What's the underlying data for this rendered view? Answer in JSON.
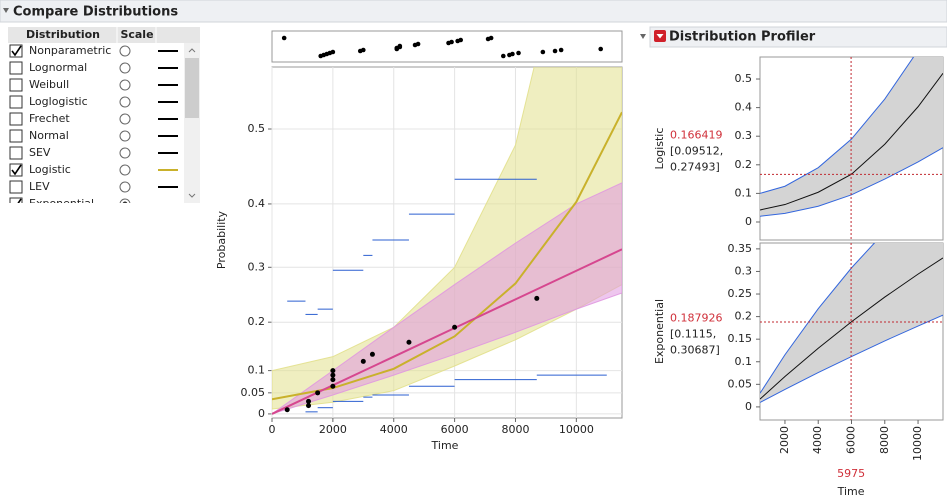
{
  "window": {
    "title": "Compare Distributions"
  },
  "table": {
    "columns": [
      "Distribution",
      "Scale"
    ],
    "rows": [
      {
        "name": "Nonparametric",
        "checked": true,
        "scale": false,
        "color": "#000000"
      },
      {
        "name": "Lognormal",
        "checked": false,
        "scale": false,
        "color": "#000000"
      },
      {
        "name": "Weibull",
        "checked": false,
        "scale": false,
        "color": "#000000"
      },
      {
        "name": "Loglogistic",
        "checked": false,
        "scale": false,
        "color": "#000000"
      },
      {
        "name": "Frechet",
        "checked": false,
        "scale": false,
        "color": "#000000"
      },
      {
        "name": "Normal",
        "checked": false,
        "scale": false,
        "color": "#000000"
      },
      {
        "name": "SEV",
        "checked": false,
        "scale": false,
        "color": "#000000"
      },
      {
        "name": "Logistic",
        "checked": true,
        "scale": false,
        "color": "#c9b12b"
      },
      {
        "name": "LEV",
        "checked": false,
        "scale": false,
        "color": "#000000"
      },
      {
        "name": "Exponential",
        "checked": true,
        "scale": true,
        "color": "#d6478f"
      }
    ]
  },
  "profiler": {
    "title": "Distribution Profiler"
  },
  "chart_data": [
    {
      "type": "line",
      "xlabel": "Time",
      "ylabel": "Probability",
      "xlim": [
        0,
        11500
      ],
      "ylim": [
        -0.01,
        0.57
      ],
      "yscale": "exponential",
      "xticks": [
        0,
        2000,
        4000,
        6000,
        8000,
        10000
      ],
      "yticks": [
        0,
        0.05,
        0.1,
        0.2,
        0.3,
        0.4,
        0.5
      ],
      "grid": true,
      "rug": {
        "x": [
          400,
          1600,
          1700,
          1800,
          1900,
          2000,
          2900,
          3000,
          4100,
          4100,
          4200,
          4200,
          4700,
          4800,
          5800,
          5900,
          6100,
          6200,
          7100,
          7200,
          7600,
          7800,
          7900,
          8100,
          8900,
          9300,
          9500,
          10800
        ],
        "color": "#000000"
      },
      "points": {
        "color": "#000000",
        "x": [
          500,
          1200,
          1200,
          1500,
          2000,
          2000,
          2000,
          2000,
          3000,
          3300,
          4500,
          6000,
          8700
        ],
        "values": [
          0.01,
          0.02,
          0.03,
          0.05,
          0.065,
          0.08,
          0.09,
          0.1,
          0.12,
          0.135,
          0.16,
          0.19,
          0.245
        ]
      },
      "steps": {
        "color": "#2b5fd0",
        "x_start": [
          500,
          1100,
          1500,
          2000,
          3000,
          3300,
          4500,
          6000,
          1100,
          1500,
          2000,
          3000,
          3300,
          4500,
          6000,
          8700
        ],
        "x_end": [
          1100,
          1500,
          2000,
          3000,
          3300,
          4500,
          6000,
          8700,
          1500,
          2000,
          3000,
          3300,
          4500,
          6000,
          8700,
          11000
        ],
        "values": [
          0.24,
          0.215,
          0.225,
          0.295,
          0.32,
          0.345,
          0.385,
          0.435,
          0.005,
          0.015,
          0.03,
          0.04,
          0.045,
          0.065,
          0.08,
          0.09
        ]
      },
      "series": [
        {
          "color": "#c9b12b",
          "band_color": "#e2e08c",
          "x": [
            0,
            2000,
            4000,
            6000,
            8000,
            10000,
            11500
          ],
          "values": [
            0.035,
            0.061,
            0.104,
            0.172,
            0.272,
            0.403,
            0.52
          ],
          "lower": [
            0.012,
            0.028,
            0.055,
            0.11,
            0.165,
            0.225,
            0.27
          ],
          "upper": [
            0.1,
            0.13,
            0.19,
            0.3,
            0.48,
            0.72,
            0.85
          ]
        },
        {
          "color": "#d6478f",
          "band_color": "#e098e0",
          "x": [
            0,
            2000,
            4000,
            6000,
            8000,
            10000,
            11500
          ],
          "values": [
            0,
            0.0673,
            0.13,
            0.1886,
            0.2432,
            0.2941,
            0.33
          ],
          "lower": [
            0,
            0.045,
            0.09,
            0.135,
            0.18,
            0.225,
            0.255
          ],
          "upper": [
            0,
            0.1,
            0.19,
            0.27,
            0.34,
            0.4,
            0.43
          ]
        }
      ]
    },
    {
      "type": "profiler",
      "ylabel": "Logistic",
      "xlim": [
        500,
        11500
      ],
      "ylim": [
        -0.063,
        0.577
      ],
      "yticks": [
        0,
        0.1,
        0.2,
        0.3,
        0.4,
        0.5
      ],
      "crosshair_x": 5975,
      "crosshair_y": 0.166419,
      "ci_labels": [
        "[0.09512,",
        "0.27493]"
      ],
      "x": [
        500,
        2000,
        4000,
        6000,
        8000,
        10000,
        11500
      ],
      "values": [
        0.042,
        0.061,
        0.104,
        0.167,
        0.272,
        0.403,
        0.52
      ],
      "lower": [
        0.02,
        0.03,
        0.055,
        0.095,
        0.15,
        0.21,
        0.26
      ],
      "upper": [
        0.1,
        0.125,
        0.19,
        0.29,
        0.43,
        0.6,
        0.7
      ]
    },
    {
      "type": "profiler",
      "ylabel": "Exponential",
      "xlabel": "Time",
      "xlim": [
        500,
        11500
      ],
      "ylim": [
        -0.029,
        0.363
      ],
      "xticks": [
        2000,
        4000,
        6000,
        8000,
        10000
      ],
      "yticks": [
        0,
        0.05,
        0.1,
        0.15,
        0.2,
        0.25,
        0.3,
        0.35
      ],
      "crosshair_x": 5975,
      "crosshair_y": 0.187926,
      "ci_labels": [
        "[0.1115,",
        "0.30687]"
      ],
      "x": [
        500,
        2000,
        4000,
        6000,
        8000,
        10000,
        11500
      ],
      "values": [
        0.0173,
        0.0673,
        0.13,
        0.1886,
        0.2432,
        0.2941,
        0.33
      ],
      "lower": [
        0.0098,
        0.0388,
        0.076,
        0.1116,
        0.1462,
        0.1791,
        0.2033
      ],
      "upper": [
        0.0302,
        0.1155,
        0.2176,
        0.3079,
        0.3878,
        0.4585,
        0.5058
      ]
    }
  ]
}
